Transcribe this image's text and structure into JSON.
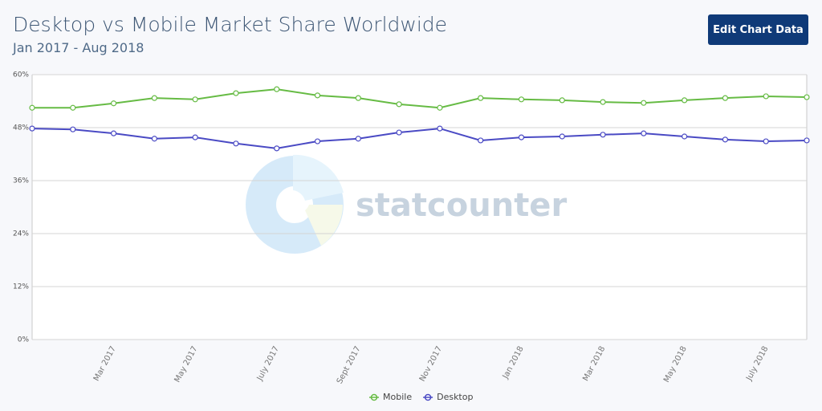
{
  "header": {
    "title": "Desktop vs Mobile Market Share Worldwide",
    "subtitle": "Jan 2017 - Aug 2018",
    "button": "Edit Chart Data"
  },
  "chart_data": {
    "type": "line",
    "categories": [
      null,
      null,
      "Mar 2017",
      null,
      "May 2017",
      null,
      "July 2017",
      null,
      "Sept 2017",
      null,
      "Nov 2017",
      null,
      "Jan 2018",
      null,
      "Mar 2018",
      null,
      "May 2018",
      null,
      "July 2018",
      null
    ],
    "series": [
      {
        "name": "Mobile",
        "color": "#66bb44",
        "values": [
          52.5,
          52.5,
          53.5,
          54.7,
          54.4,
          55.8,
          56.7,
          55.3,
          54.7,
          53.3,
          52.5,
          54.7,
          54.4,
          54.2,
          53.8,
          53.6,
          54.2,
          54.7,
          55.1,
          54.9
        ]
      },
      {
        "name": "Desktop",
        "color": "#4a4ac4",
        "values": [
          47.8,
          47.6,
          46.7,
          45.5,
          45.8,
          44.4,
          43.3,
          44.9,
          45.5,
          46.9,
          47.8,
          45.1,
          45.8,
          46.0,
          46.4,
          46.7,
          46.0,
          45.3,
          44.9,
          45.1
        ]
      }
    ],
    "ylim": [
      0,
      60
    ],
    "yticks": [
      {
        "value": 0,
        "label": "0%"
      },
      {
        "value": 12,
        "label": "12%"
      },
      {
        "value": 24,
        "label": "24%"
      },
      {
        "value": 36,
        "label": "36%"
      },
      {
        "value": 48,
        "label": "48%"
      },
      {
        "value": 60,
        "label": "60%"
      }
    ],
    "grid": true,
    "watermark": "statcounter",
    "legend": "bottom"
  }
}
